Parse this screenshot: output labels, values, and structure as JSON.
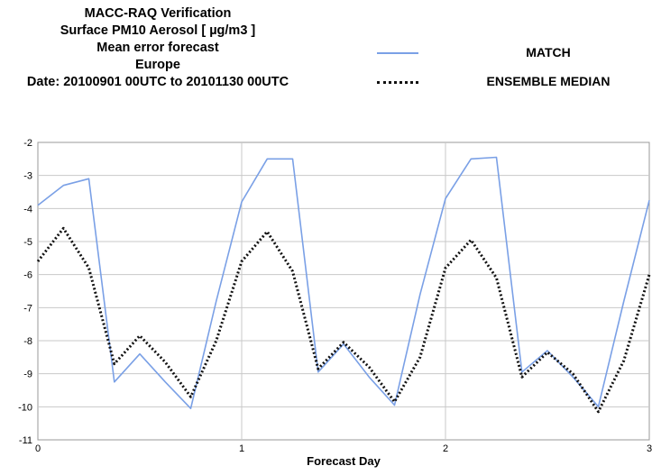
{
  "title_lines": [
    "MACC-RAQ Verification",
    "Surface PM10 Aerosol [ µg/m3 ]",
    "Mean error forecast",
    "Europe",
    "Date: 20100901 00UTC to 20101130 00UTC"
  ],
  "colors": {
    "match": "#7aa0e6",
    "ensemble": "#111111",
    "grid": "#c8c8c8",
    "axis": "#000000"
  },
  "chart_data": {
    "type": "line",
    "title": "MACC-RAQ Verification",
    "xlabel": "Forecast Day",
    "ylabel": "",
    "xlim": [
      0,
      3
    ],
    "ylim": [
      -11,
      -2
    ],
    "xticks": [
      "0",
      "1",
      "2",
      "3"
    ],
    "yticks": [
      "-2",
      "-3",
      "-4",
      "-5",
      "-6",
      "-7",
      "-8",
      "-9",
      "-10",
      "-11"
    ],
    "grid": true,
    "legend_position": "top-right",
    "x": [
      0,
      0.125,
      0.25,
      0.375,
      0.5,
      0.625,
      0.75,
      0.875,
      1.0,
      1.125,
      1.25,
      1.375,
      1.5,
      1.625,
      1.75,
      1.875,
      2.0,
      2.125,
      2.25,
      2.375,
      2.5,
      2.625,
      2.75,
      2.875,
      3.0
    ],
    "series": [
      {
        "name": "MATCH",
        "style": "solid",
        "values": [
          -3.9,
          -3.3,
          -3.1,
          -9.25,
          -8.4,
          -9.25,
          -10.05,
          -6.8,
          -3.8,
          -2.5,
          -2.5,
          -8.95,
          -8.1,
          -9.1,
          -9.95,
          -6.6,
          -3.7,
          -2.5,
          -2.45,
          -8.95,
          -8.3,
          -9.1,
          -10.0,
          -6.8,
          -3.75
        ]
      },
      {
        "name": "ENSEMBLE MEDIAN",
        "style": "dotted",
        "values": [
          -5.6,
          -4.6,
          -5.8,
          -8.7,
          -7.85,
          -8.65,
          -9.7,
          -8.0,
          -5.6,
          -4.7,
          -5.9,
          -8.85,
          -8.05,
          -8.8,
          -9.85,
          -8.5,
          -5.8,
          -4.95,
          -6.1,
          -9.1,
          -8.35,
          -9.0,
          -10.15,
          -8.6,
          -6.0
        ]
      }
    ]
  }
}
